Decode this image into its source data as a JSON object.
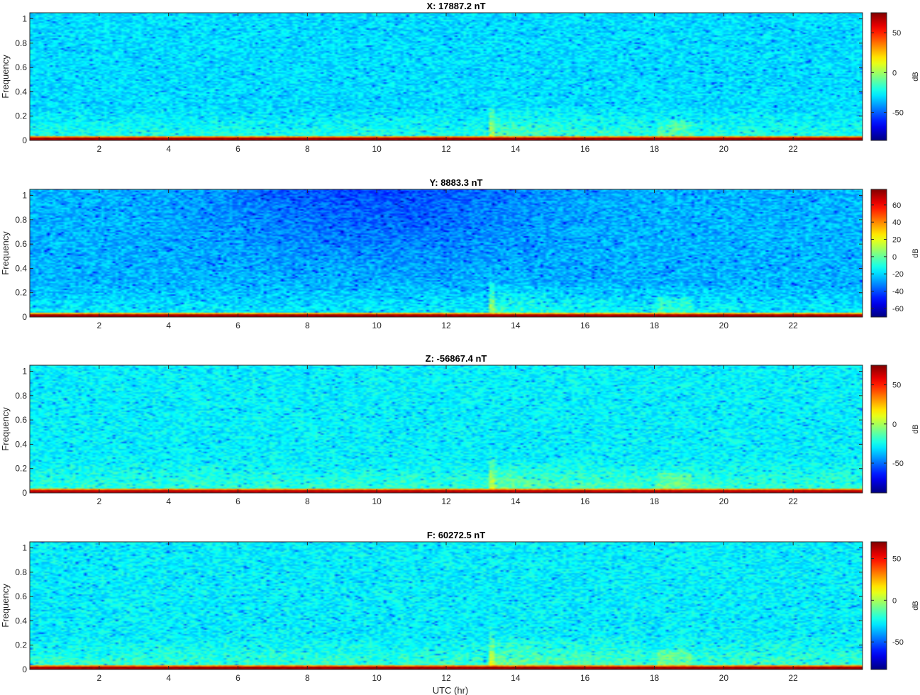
{
  "chart_data": [
    {
      "type": "heatmap",
      "title": "X: 17887.2 nT",
      "ylabel": "Frequency",
      "xlabel": "",
      "xlim": [
        0,
        24
      ],
      "ylim": [
        0,
        1.05
      ],
      "x_ticks": [
        2,
        4,
        6,
        8,
        10,
        12,
        14,
        16,
        18,
        20,
        22
      ],
      "x_tick_labels": [
        "2",
        "4",
        "6",
        "8",
        "10",
        "12",
        "14",
        "16",
        "18",
        "20",
        "22"
      ],
      "y_ticks": [
        0,
        0.2,
        0.4,
        0.6,
        0.8,
        1
      ],
      "y_tick_labels": [
        "0",
        "0.2",
        "0.4",
        "0.6",
        "0.8",
        "1"
      ],
      "colorbar": {
        "label": "dB",
        "range": [
          -85,
          75
        ],
        "ticks": [
          -50,
          0,
          50
        ],
        "tick_labels": [
          "-50",
          "0",
          "50"
        ],
        "colormap": "jet"
      },
      "typical_level_db": -30,
      "low_freq_level_db": 70,
      "event_start_hr": 13.2
    },
    {
      "type": "heatmap",
      "title": "Y: 8883.3 nT",
      "ylabel": "Frequency",
      "xlabel": "",
      "xlim": [
        0,
        24
      ],
      "ylim": [
        0,
        1.05
      ],
      "x_ticks": [
        2,
        4,
        6,
        8,
        10,
        12,
        14,
        16,
        18,
        20,
        22
      ],
      "x_tick_labels": [
        "2",
        "4",
        "6",
        "8",
        "10",
        "12",
        "14",
        "16",
        "18",
        "20",
        "22"
      ],
      "y_ticks": [
        0,
        0.2,
        0.4,
        0.6,
        0.8,
        1
      ],
      "y_tick_labels": [
        "0",
        "0.2",
        "0.4",
        "0.6",
        "0.8",
        "1"
      ],
      "colorbar": {
        "label": "dB",
        "range": [
          -70,
          78
        ],
        "ticks": [
          -60,
          -40,
          -20,
          0,
          20,
          40,
          60
        ],
        "tick_labels": [
          "-60",
          "-40",
          "-20",
          "0",
          "20",
          "40",
          "60"
        ],
        "colormap": "jet"
      },
      "typical_level_db": -25,
      "low_freq_level_db": 72,
      "event_start_hr": 13.2
    },
    {
      "type": "heatmap",
      "title": "Z: -56867.4 nT",
      "ylabel": "Frequency",
      "xlabel": "",
      "xlim": [
        0,
        24
      ],
      "ylim": [
        0,
        1.05
      ],
      "x_ticks": [
        2,
        4,
        6,
        8,
        10,
        12,
        14,
        16,
        18,
        20,
        22
      ],
      "x_tick_labels": [
        "2",
        "4",
        "6",
        "8",
        "10",
        "12",
        "14",
        "16",
        "18",
        "20",
        "22"
      ],
      "y_ticks": [
        0,
        0.2,
        0.4,
        0.6,
        0.8,
        1
      ],
      "y_tick_labels": [
        "0",
        "0.2",
        "0.4",
        "0.6",
        "0.8",
        "1"
      ],
      "colorbar": {
        "label": "dB",
        "range": [
          -88,
          75
        ],
        "ticks": [
          -50,
          0,
          50
        ],
        "tick_labels": [
          "-50",
          "0",
          "50"
        ],
        "colormap": "jet"
      },
      "typical_level_db": -28,
      "low_freq_level_db": 65,
      "event_start_hr": 13.2
    },
    {
      "type": "heatmap",
      "title": "F: 60272.5 nT",
      "ylabel": "Frequency",
      "xlabel": "UTC (hr)",
      "xlim": [
        0,
        24
      ],
      "ylim": [
        0,
        1.05
      ],
      "x_ticks": [
        2,
        4,
        6,
        8,
        10,
        12,
        14,
        16,
        18,
        20,
        22
      ],
      "x_tick_labels": [
        "2",
        "4",
        "6",
        "8",
        "10",
        "12",
        "14",
        "16",
        "18",
        "20",
        "22"
      ],
      "y_ticks": [
        0,
        0.2,
        0.4,
        0.6,
        0.8,
        1
      ],
      "y_tick_labels": [
        "0",
        "0.2",
        "0.4",
        "0.6",
        "0.8",
        "1"
      ],
      "colorbar": {
        "label": "dB",
        "range": [
          -83,
          70
        ],
        "ticks": [
          -50,
          0,
          50
        ],
        "tick_labels": [
          "-50",
          "0",
          "50"
        ],
        "colormap": "jet"
      },
      "typical_level_db": -27,
      "low_freq_level_db": 65,
      "event_start_hr": 13.2
    }
  ]
}
